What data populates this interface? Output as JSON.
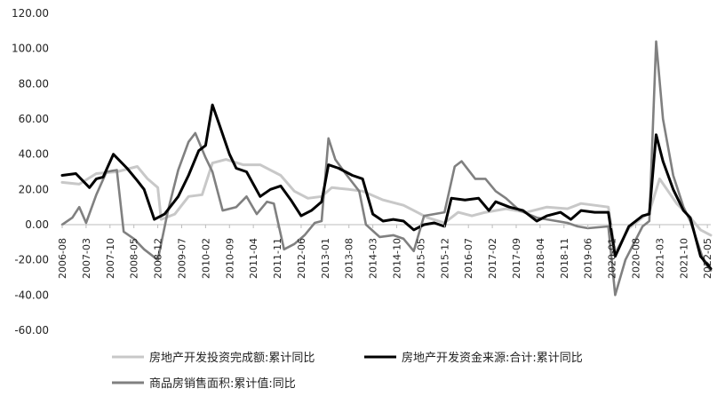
{
  "chart_data": {
    "type": "line",
    "title": "",
    "xlabel": "",
    "ylabel": "",
    "ylim": [
      -60,
      120
    ],
    "yticks": [
      "120.00",
      "100.00",
      "80.00",
      "60.00",
      "40.00",
      "20.00",
      "0.00",
      "-20.00",
      "-40.00",
      "-60.00"
    ],
    "xlim": [
      "2006-08",
      "2022-06"
    ],
    "xticks": [
      "2006-08",
      "2007-03",
      "2007-10",
      "2008-05",
      "2008-12",
      "2009-07",
      "2010-02",
      "2010-09",
      "2011-04",
      "2011-11",
      "2012-06",
      "2013-01",
      "2013-08",
      "2014-03",
      "2014-10",
      "2015-05",
      "2015-12",
      "2016-07",
      "2017-02",
      "2017-09",
      "2018-04",
      "2018-11",
      "2019-06",
      "2020-01",
      "2020-08",
      "2021-03",
      "2021-10",
      "2022-05"
    ],
    "grid": false,
    "legend_position": "bottom",
    "series": [
      {
        "name": "房地产开发投资完成额:累计同比",
        "color": "#c8c8c8",
        "points": [
          [
            "2006-08",
            24
          ],
          [
            "2007-01",
            23
          ],
          [
            "2007-06",
            29
          ],
          [
            "2007-12",
            30
          ],
          [
            "2008-06",
            33
          ],
          [
            "2008-09",
            26
          ],
          [
            "2008-12",
            21
          ],
          [
            "2009-01",
            3
          ],
          [
            "2009-05",
            6
          ],
          [
            "2009-09",
            16
          ],
          [
            "2010-01",
            17
          ],
          [
            "2010-04",
            35
          ],
          [
            "2010-08",
            37
          ],
          [
            "2011-01",
            34
          ],
          [
            "2011-06",
            34
          ],
          [
            "2011-12",
            28
          ],
          [
            "2012-04",
            19
          ],
          [
            "2012-08",
            15
          ],
          [
            "2012-12",
            16
          ],
          [
            "2013-03",
            21
          ],
          [
            "2013-08",
            20
          ],
          [
            "2013-12",
            19
          ],
          [
            "2014-06",
            14
          ],
          [
            "2014-12",
            11
          ],
          [
            "2015-03",
            8
          ],
          [
            "2015-07",
            4
          ],
          [
            "2015-12",
            1
          ],
          [
            "2016-04",
            7
          ],
          [
            "2016-08",
            5
          ],
          [
            "2016-12",
            7
          ],
          [
            "2017-06",
            9
          ],
          [
            "2017-12",
            7
          ],
          [
            "2018-06",
            10
          ],
          [
            "2018-12",
            9
          ],
          [
            "2019-04",
            12
          ],
          [
            "2019-12",
            10
          ],
          [
            "2020-02",
            -16
          ],
          [
            "2020-06",
            -2
          ],
          [
            "2020-12",
            7
          ],
          [
            "2021-03",
            26
          ],
          [
            "2021-08",
            12
          ],
          [
            "2021-12",
            4
          ],
          [
            "2022-03",
            -3
          ],
          [
            "2022-06",
            -6
          ]
        ]
      },
      {
        "name": "房地产开发资金来源:合计:累计同比",
        "color": "#000000",
        "points": [
          [
            "2006-08",
            28
          ],
          [
            "2006-12",
            29
          ],
          [
            "2007-04",
            21
          ],
          [
            "2007-06",
            26
          ],
          [
            "2007-08",
            27
          ],
          [
            "2007-11",
            40
          ],
          [
            "2008-03",
            32
          ],
          [
            "2008-06",
            25
          ],
          [
            "2008-08",
            20
          ],
          [
            "2008-11",
            3
          ],
          [
            "2009-02",
            6
          ],
          [
            "2009-06",
            16
          ],
          [
            "2009-09",
            28
          ],
          [
            "2009-12",
            42
          ],
          [
            "2010-02",
            45
          ],
          [
            "2010-04",
            68
          ],
          [
            "2010-06",
            57
          ],
          [
            "2010-09",
            40
          ],
          [
            "2010-11",
            32
          ],
          [
            "2011-02",
            30
          ],
          [
            "2011-06",
            16
          ],
          [
            "2011-09",
            20
          ],
          [
            "2011-12",
            22
          ],
          [
            "2012-03",
            14
          ],
          [
            "2012-06",
            5
          ],
          [
            "2012-09",
            8
          ],
          [
            "2012-12",
            13
          ],
          [
            "2013-02",
            34
          ],
          [
            "2013-05",
            32
          ],
          [
            "2013-09",
            28
          ],
          [
            "2013-12",
            26
          ],
          [
            "2014-03",
            6
          ],
          [
            "2014-06",
            2
          ],
          [
            "2014-09",
            3
          ],
          [
            "2014-12",
            2
          ],
          [
            "2015-03",
            -3
          ],
          [
            "2015-06",
            0
          ],
          [
            "2015-09",
            1
          ],
          [
            "2015-12",
            -1
          ],
          [
            "2016-02",
            15
          ],
          [
            "2016-06",
            14
          ],
          [
            "2016-10",
            15
          ],
          [
            "2017-01",
            8
          ],
          [
            "2017-03",
            13
          ],
          [
            "2017-07",
            10
          ],
          [
            "2017-11",
            8
          ],
          [
            "2018-03",
            2
          ],
          [
            "2018-06",
            5
          ],
          [
            "2018-10",
            7
          ],
          [
            "2019-01",
            3
          ],
          [
            "2019-04",
            8
          ],
          [
            "2019-08",
            7
          ],
          [
            "2019-12",
            7
          ],
          [
            "2020-02",
            -18
          ],
          [
            "2020-06",
            -1
          ],
          [
            "2020-10",
            5
          ],
          [
            "2020-12",
            6
          ],
          [
            "2021-02",
            51
          ],
          [
            "2021-04",
            36
          ],
          [
            "2021-07",
            20
          ],
          [
            "2021-10",
            8
          ],
          [
            "2021-12",
            4
          ],
          [
            "2022-03",
            -18
          ],
          [
            "2022-06",
            -25
          ]
        ]
      },
      {
        "name": "商品房销售面积:累计值:同比",
        "color": "#808080",
        "points": [
          [
            "2006-08",
            0
          ],
          [
            "2006-11",
            4
          ],
          [
            "2007-01",
            10
          ],
          [
            "2007-03",
            1
          ],
          [
            "2007-06",
            17
          ],
          [
            "2007-09",
            30
          ],
          [
            "2007-12",
            31
          ],
          [
            "2008-02",
            -4
          ],
          [
            "2008-05",
            -8
          ],
          [
            "2008-08",
            -14
          ],
          [
            "2008-12",
            -20
          ],
          [
            "2009-03",
            8
          ],
          [
            "2009-06",
            31
          ],
          [
            "2009-09",
            47
          ],
          [
            "2009-11",
            52
          ],
          [
            "2010-02",
            38
          ],
          [
            "2010-04",
            30
          ],
          [
            "2010-07",
            8
          ],
          [
            "2010-11",
            10
          ],
          [
            "2011-02",
            16
          ],
          [
            "2011-05",
            6
          ],
          [
            "2011-08",
            13
          ],
          [
            "2011-10",
            12
          ],
          [
            "2012-01",
            -14
          ],
          [
            "2012-04",
            -11
          ],
          [
            "2012-07",
            -6
          ],
          [
            "2012-10",
            1
          ],
          [
            "2012-12",
            2
          ],
          [
            "2013-02",
            49
          ],
          [
            "2013-04",
            37
          ],
          [
            "2013-07",
            29
          ],
          [
            "2013-11",
            19
          ],
          [
            "2014-01",
            0
          ],
          [
            "2014-05",
            -7
          ],
          [
            "2014-09",
            -6
          ],
          [
            "2014-12",
            -8
          ],
          [
            "2015-03",
            -15
          ],
          [
            "2015-06",
            5
          ],
          [
            "2015-09",
            6
          ],
          [
            "2015-12",
            7
          ],
          [
            "2016-03",
            33
          ],
          [
            "2016-05",
            36
          ],
          [
            "2016-09",
            26
          ],
          [
            "2016-12",
            26
          ],
          [
            "2017-03",
            19
          ],
          [
            "2017-06",
            15
          ],
          [
            "2017-10",
            8
          ],
          [
            "2018-03",
            4
          ],
          [
            "2018-06",
            3
          ],
          [
            "2018-12",
            1
          ],
          [
            "2019-03",
            -1
          ],
          [
            "2019-06",
            -2
          ],
          [
            "2019-12",
            -1
          ],
          [
            "2020-02",
            -40
          ],
          [
            "2020-05",
            -20
          ],
          [
            "2020-10",
            -1
          ],
          [
            "2020-12",
            2
          ],
          [
            "2021-02",
            104
          ],
          [
            "2021-04",
            60
          ],
          [
            "2021-07",
            28
          ],
          [
            "2021-10",
            10
          ],
          [
            "2021-12",
            2
          ],
          [
            "2022-04",
            -21
          ],
          [
            "2022-06",
            -26
          ]
        ]
      }
    ]
  }
}
